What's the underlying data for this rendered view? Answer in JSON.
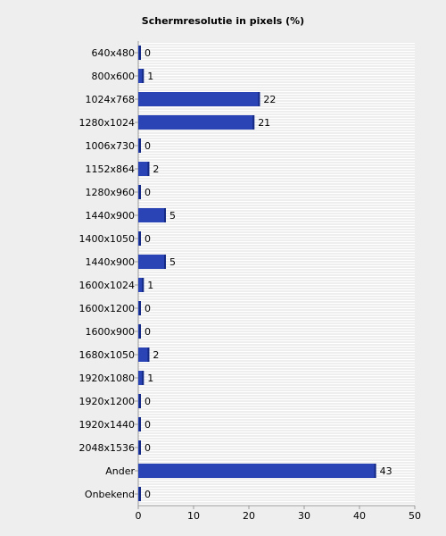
{
  "chart_data": {
    "type": "bar",
    "orientation": "horizontal",
    "title": "Schermresolutie in pixels (%)",
    "xlabel": "",
    "ylabel": "",
    "xlim": [
      0,
      50
    ],
    "x_ticks": [
      0,
      10,
      20,
      30,
      40,
      50
    ],
    "grid": true,
    "legend": "none",
    "bar_color": "#2b44b5",
    "bar_edge_color": "#142a85",
    "categories": [
      "640x480",
      "800x600",
      "1024x768",
      "1280x1024",
      "1006x730",
      "1152x864",
      "1280x960",
      "1440x900",
      "1400x1050",
      "1440x900",
      "1600x1024",
      "1600x1200",
      "1600x900",
      "1680x1050",
      "1920x1080",
      "1920x1200",
      "1920x1440",
      "2048x1536",
      "Ander",
      "Onbekend"
    ],
    "values": [
      0,
      1,
      22,
      21,
      0,
      2,
      0,
      5,
      0,
      5,
      1,
      0,
      0,
      2,
      1,
      0,
      0,
      0,
      43,
      0
    ]
  }
}
